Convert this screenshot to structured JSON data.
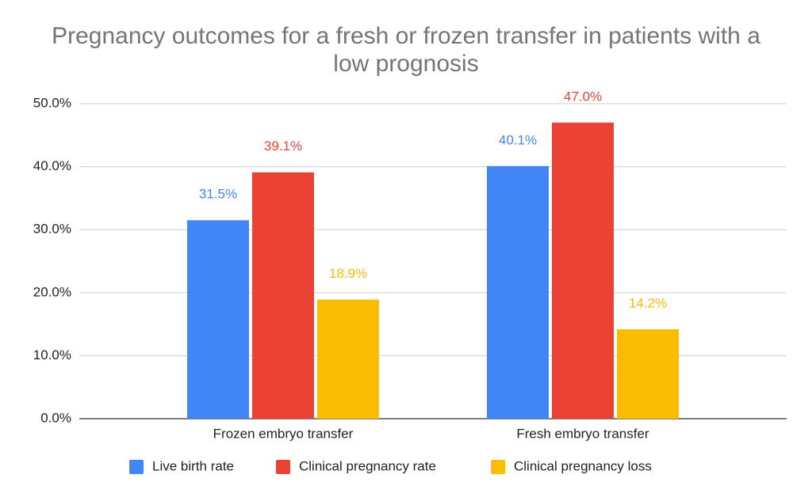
{
  "chart_data": {
    "type": "bar",
    "title": "Pregnancy outcomes for a fresh or frozen transfer in patients with a low prognosis",
    "categories": [
      "Frozen embryo transfer",
      "Fresh embryo transfer"
    ],
    "series": [
      {
        "name": "Live birth rate",
        "color": "#4285f4",
        "values": [
          31.5,
          40.1
        ],
        "value_labels": [
          "31.5%",
          "40.1%"
        ]
      },
      {
        "name": "Clinical pregnancy rate",
        "color": "#ea4335",
        "values": [
          39.1,
          47.0
        ],
        "value_labels": [
          "39.1%",
          "47.0%"
        ]
      },
      {
        "name": "Clinical pregnancy loss",
        "color": "#fbbc04",
        "values": [
          18.9,
          14.2
        ],
        "value_labels": [
          "18.9%",
          "14.2%"
        ]
      }
    ],
    "ylim": [
      0,
      50
    ],
    "yticks": [
      {
        "value": 0,
        "label": "0.0%"
      },
      {
        "value": 10,
        "label": "10.0%"
      },
      {
        "value": 20,
        "label": "20.0%"
      },
      {
        "value": 30,
        "label": "30.0%"
      },
      {
        "value": 40,
        "label": "40.0%"
      },
      {
        "value": 50,
        "label": "50.0%"
      }
    ],
    "grid": true,
    "legend": "bottom"
  }
}
